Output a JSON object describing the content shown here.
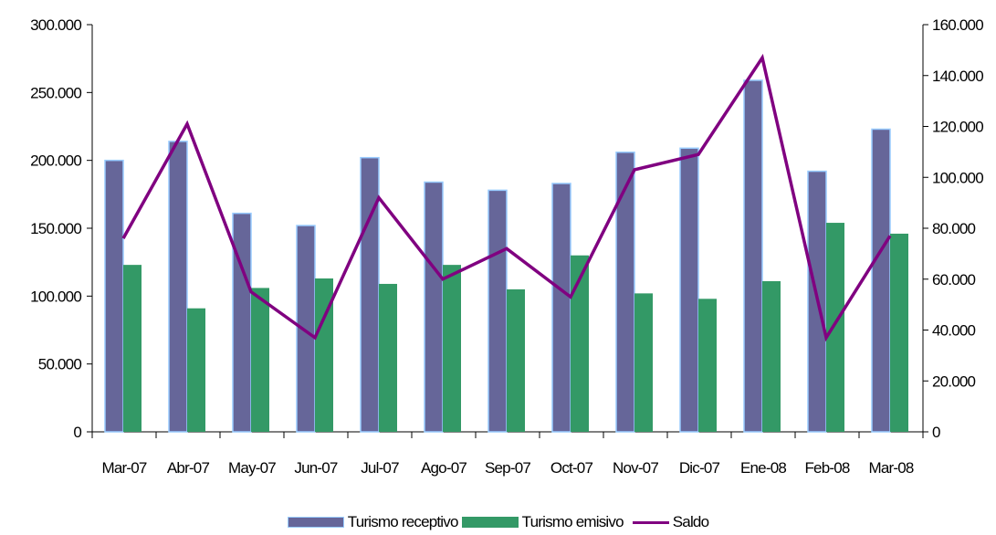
{
  "chart_data": {
    "type": "bar",
    "categories": [
      "Mar-07",
      "Abr-07",
      "May-07",
      "Jun-07",
      "Jul-07",
      "Ago-07",
      "Sep-07",
      "Oct-07",
      "Nov-07",
      "Dic-07",
      "Ene-08",
      "Feb-08",
      "Mar-08"
    ],
    "series": [
      {
        "name": "Turismo receptivo",
        "type": "bar",
        "axis": "left",
        "color": "#666699",
        "values": [
          200000,
          214000,
          161000,
          152000,
          202000,
          184000,
          178000,
          183000,
          206000,
          209000,
          259000,
          192000,
          223000
        ]
      },
      {
        "name": "Turismo emisivo",
        "type": "bar",
        "axis": "left",
        "color": "#339966",
        "values": [
          123000,
          91000,
          106000,
          113000,
          109000,
          123000,
          105000,
          130000,
          102000,
          98000,
          111000,
          154000,
          146000
        ]
      },
      {
        "name": "Saldo",
        "type": "line",
        "axis": "right",
        "color": "#800080",
        "values": [
          76000,
          121000,
          55000,
          37000,
          92000,
          60000,
          72000,
          53000,
          103000,
          109000,
          147000,
          37000,
          77000
        ]
      }
    ],
    "y_left": {
      "range": [
        0,
        300000
      ],
      "ticks": [
        0,
        50000,
        100000,
        150000,
        200000,
        250000,
        300000
      ],
      "tick_labels": [
        "0",
        "50.000",
        "100.000",
        "150.000",
        "200.000",
        "250.000",
        "300.000"
      ]
    },
    "y_right": {
      "range": [
        0,
        160000
      ],
      "ticks": [
        0,
        20000,
        40000,
        60000,
        80000,
        100000,
        120000,
        140000,
        160000
      ],
      "tick_labels": [
        "0",
        "20.000",
        "40.000",
        "60.000",
        "80.000",
        "100.000",
        "120.000",
        "140.000",
        "160.000"
      ]
    },
    "grid": false,
    "legend_position": "bottom"
  }
}
